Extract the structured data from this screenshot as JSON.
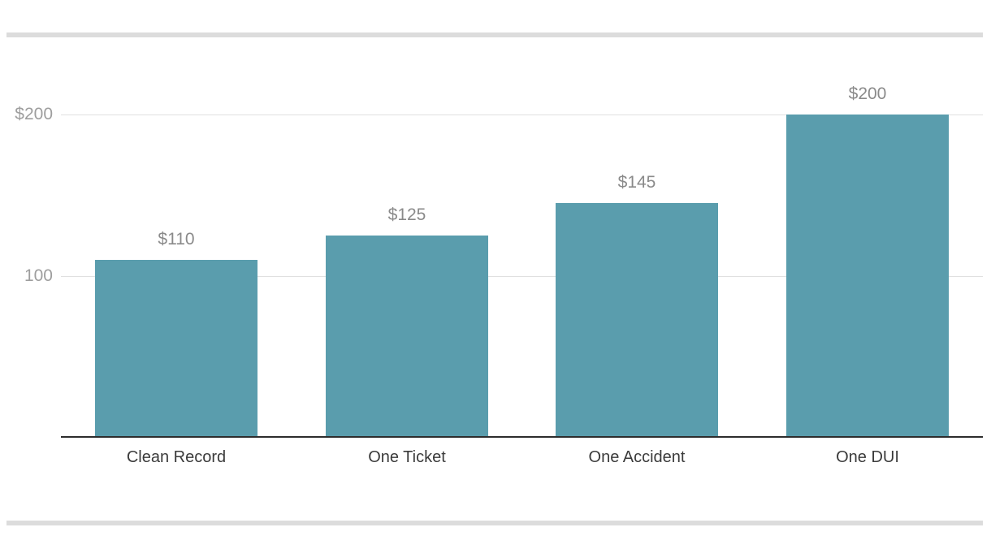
{
  "chart_data": {
    "type": "bar",
    "title": "",
    "xlabel": "",
    "ylabel": "",
    "categories": [
      "Clean Record",
      "One Ticket",
      "One Accident",
      "One DUI"
    ],
    "values": [
      110,
      125,
      145,
      200
    ],
    "data_labels": [
      "$110",
      "$125",
      "$145",
      "$200"
    ],
    "y_ticks": [
      {
        "value": 200,
        "label": "$200"
      },
      {
        "value": 100,
        "label": "100"
      }
    ],
    "ylim": [
      0,
      200
    ],
    "grid": true,
    "legend": "none",
    "colors": {
      "bar": "#5A9DAD",
      "gridline": "#e0e0e0",
      "axis_line": "#2d2d2d",
      "tick_label": "#9e9e9e",
      "data_label": "#8a8a8a",
      "category_label": "#3b3b3b",
      "divider": "#dcdcdc",
      "background": "#ffffff"
    }
  }
}
